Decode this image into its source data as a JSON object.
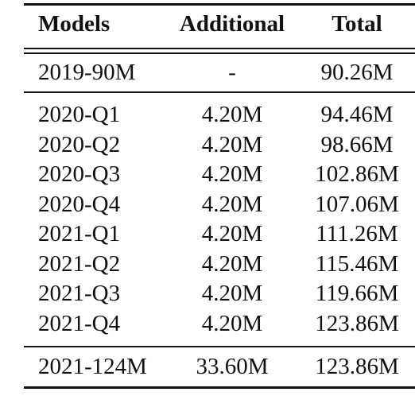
{
  "table": {
    "headers": [
      "Models",
      "Additional",
      "Total"
    ],
    "baseline": {
      "model": "2019-90M",
      "additional": "-",
      "total": "90.26M"
    },
    "quarterly": [
      {
        "model": "2020-Q1",
        "additional": "4.20M",
        "total": "94.46M"
      },
      {
        "model": "2020-Q2",
        "additional": "4.20M",
        "total": "98.66M"
      },
      {
        "model": "2020-Q3",
        "additional": "4.20M",
        "total": "102.86M"
      },
      {
        "model": "2020-Q4",
        "additional": "4.20M",
        "total": "107.06M"
      },
      {
        "model": "2021-Q1",
        "additional": "4.20M",
        "total": "111.26M"
      },
      {
        "model": "2021-Q2",
        "additional": "4.20M",
        "total": "115.46M"
      },
      {
        "model": "2021-Q3",
        "additional": "4.20M",
        "total": "119.66M"
      },
      {
        "model": "2021-Q4",
        "additional": "4.20M",
        "total": "123.86M"
      }
    ],
    "final": {
      "model": "2021-124M",
      "additional": "33.60M",
      "total": "123.86M"
    }
  }
}
